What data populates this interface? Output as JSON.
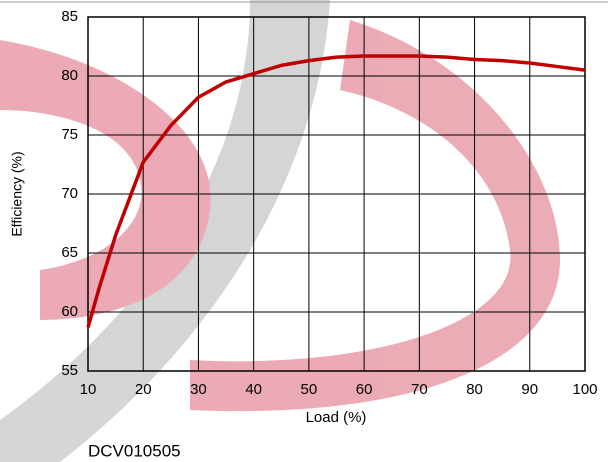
{
  "chart_data": {
    "type": "line",
    "x": [
      10,
      12,
      15,
      20,
      25,
      30,
      35,
      40,
      45,
      50,
      55,
      60,
      65,
      70,
      75,
      80,
      85,
      90,
      95,
      100
    ],
    "values": [
      58.7,
      62,
      66.5,
      72.7,
      75.8,
      78.2,
      79.5,
      80.2,
      80.9,
      81.3,
      81.6,
      81.7,
      81.7,
      81.7,
      81.6,
      81.4,
      81.3,
      81.1,
      80.8,
      80.5
    ],
    "color": "#c00000",
    "xlabel": "Load (%)",
    "ylabel": "Efficiency (%)",
    "xlim": [
      10,
      100
    ],
    "xticks": [
      10,
      20,
      30,
      40,
      50,
      60,
      70,
      80,
      90,
      100
    ],
    "ylim": [
      55,
      85
    ],
    "yticks": [
      55,
      60,
      65,
      70,
      75,
      80,
      85
    ],
    "grid": true,
    "footnote": "DCV010505"
  }
}
